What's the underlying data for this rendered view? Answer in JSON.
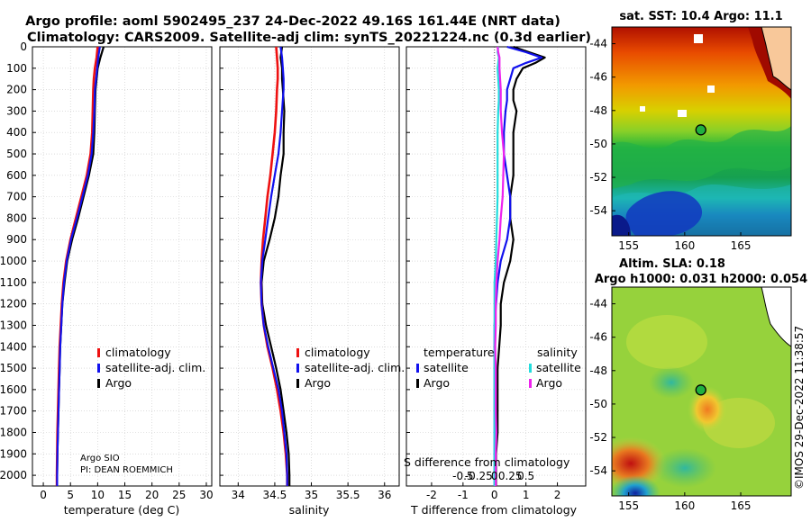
{
  "header": {
    "title_line1": "Argo profile: aoml 5902495_237 24-Dec-2022 49.16S 161.44E (NRT data)",
    "title_line2": "Climatology: CARS2009. Satellite-adj clim: synTS_20221224.nc (0.3d earlier)"
  },
  "colors": {
    "climatology": "#ee1111",
    "satellite_adj": "#1111ee",
    "argo": "#000000",
    "sal_satellite": "#22dddd",
    "sal_argo": "#ee22ee",
    "grid": "#c8c8c8"
  },
  "depth_ticks": [
    "0",
    "100",
    "200",
    "300",
    "400",
    "500",
    "600",
    "700",
    "800",
    "900",
    "1000",
    "1100",
    "1200",
    "1300",
    "1400",
    "1500",
    "1600",
    "1700",
    "1800",
    "1900",
    "2000"
  ],
  "info": {
    "float_owner": "Argo SIO",
    "pi": "PI: DEAN ROEMMICH"
  },
  "watermark": "©IMOS 29-Dec-2022 11:38:57",
  "chart_data": [
    {
      "type": "line",
      "name": "temperature",
      "xlabel": "temperature (deg C)",
      "ylabel": "depth (dbar)",
      "xlim": [
        -2,
        31
      ],
      "ylim": [
        0,
        2050
      ],
      "xticks": [
        "0",
        "5",
        "10",
        "15",
        "20",
        "25",
        "30"
      ],
      "legend": [
        "climatology",
        "satellite-adj. clim.",
        "Argo"
      ],
      "depth": [
        0,
        50,
        100,
        150,
        200,
        300,
        400,
        500,
        600,
        700,
        800,
        900,
        1000,
        1100,
        1200,
        1300,
        1400,
        1500,
        1600,
        1700,
        1800,
        1900,
        2000,
        2050
      ],
      "series": [
        {
          "name": "climatology",
          "values": [
            10.0,
            9.8,
            9.5,
            9.3,
            9.2,
            9.1,
            9.0,
            8.7,
            8.0,
            7.0,
            6.0,
            5.0,
            4.2,
            3.7,
            3.4,
            3.2,
            3.0,
            2.9,
            2.8,
            2.7,
            2.6,
            2.55,
            2.5,
            2.5
          ]
        },
        {
          "name": "satellite-adj. clim.",
          "values": [
            10.4,
            10.1,
            9.9,
            9.7,
            9.5,
            9.4,
            9.2,
            8.9,
            8.2,
            7.2,
            6.2,
            5.1,
            4.3,
            3.8,
            3.5,
            3.3,
            3.1,
            3.0,
            2.9,
            2.8,
            2.7,
            2.6,
            2.55,
            2.55
          ]
        },
        {
          "name": "Argo",
          "values": [
            11.1,
            10.5,
            10.0,
            9.8,
            9.6,
            9.5,
            9.4,
            9.2,
            8.4,
            7.4,
            6.4,
            5.3,
            4.4,
            3.9,
            3.5,
            3.3,
            3.1,
            3.0,
            2.9,
            2.8,
            2.7,
            2.6,
            2.55,
            2.55
          ]
        }
      ]
    },
    {
      "type": "line",
      "name": "salinity",
      "xlabel": "salinity",
      "ylabel": "depth (dbar)",
      "xlim": [
        33.75,
        36.2
      ],
      "ylim": [
        0,
        2050
      ],
      "xticks": [
        "34",
        "34.5",
        "35",
        "35.5",
        "36"
      ],
      "legend": [
        "climatology",
        "satellite-adj. clim.",
        "Argo"
      ],
      "depth": [
        0,
        50,
        100,
        150,
        200,
        300,
        400,
        500,
        600,
        700,
        800,
        900,
        1000,
        1100,
        1200,
        1300,
        1400,
        1500,
        1600,
        1700,
        1800,
        1900,
        2000,
        2050
      ],
      "series": [
        {
          "name": "climatology",
          "values": [
            34.52,
            34.53,
            34.54,
            34.54,
            34.53,
            34.52,
            34.5,
            34.47,
            34.44,
            34.4,
            34.37,
            34.34,
            34.32,
            34.31,
            34.32,
            34.35,
            34.4,
            34.47,
            34.53,
            34.58,
            34.62,
            34.65,
            34.67,
            34.67
          ]
        },
        {
          "name": "satellite-adj. clim.",
          "values": [
            34.58,
            34.6,
            34.61,
            34.62,
            34.62,
            34.6,
            34.58,
            34.55,
            34.5,
            34.45,
            34.41,
            34.37,
            34.33,
            34.31,
            34.32,
            34.35,
            34.41,
            34.48,
            34.55,
            34.6,
            34.63,
            34.66,
            34.67,
            34.67
          ]
        },
        {
          "name": "Argo",
          "values": [
            34.6,
            34.58,
            34.6,
            34.6,
            34.61,
            34.63,
            34.62,
            34.62,
            34.58,
            34.55,
            34.5,
            34.43,
            34.35,
            34.32,
            34.33,
            34.38,
            34.45,
            34.52,
            34.58,
            34.62,
            34.66,
            34.69,
            34.7,
            34.7
          ]
        }
      ]
    },
    {
      "type": "line",
      "name": "difference",
      "xlabel": "T difference from climatology",
      "xlabel2": "S difference from climatology",
      "xlim": [
        -2.8,
        2.9
      ],
      "ylim": [
        0,
        2050
      ],
      "xticks": [
        "-2",
        "-1",
        "0",
        "1",
        "2"
      ],
      "sticks": [
        "-0.5",
        "-0.25",
        "0",
        "0.25",
        "0.5"
      ],
      "legend_titles": [
        "temperature",
        "salinity"
      ],
      "legend": [
        "satellite",
        "Argo",
        "satellite",
        "Argo"
      ],
      "depth": [
        0,
        25,
        50,
        75,
        100,
        150,
        200,
        250,
        300,
        400,
        500,
        600,
        700,
        800,
        900,
        1000,
        1100,
        1200,
        1300,
        1400,
        1500,
        1600,
        1700,
        1800,
        1900,
        2000,
        2050
      ],
      "series": [
        {
          "name": "T satellite",
          "values": [
            0.4,
            1.0,
            1.5,
            1.0,
            0.6,
            0.5,
            0.4,
            0.4,
            0.35,
            0.3,
            0.3,
            0.4,
            0.5,
            0.5,
            0.4,
            0.2,
            0.1,
            0.05,
            0.0,
            0.0,
            0.0,
            0.0,
            0.0,
            0.0,
            0.0,
            0.0,
            0.0
          ]
        },
        {
          "name": "T Argo",
          "values": [
            0.6,
            1.1,
            1.6,
            1.3,
            0.9,
            0.7,
            0.6,
            0.6,
            0.7,
            0.6,
            0.6,
            0.6,
            0.5,
            0.5,
            0.6,
            0.5,
            0.3,
            0.2,
            0.2,
            0.15,
            0.1,
            0.1,
            0.1,
            0.1,
            0.05,
            0.05,
            0.05
          ]
        },
        {
          "name": "S satellite",
          "values": [
            0.06,
            0.05,
            0.07,
            0.06,
            0.05,
            0.06,
            0.07,
            0.07,
            0.06,
            0.05,
            0.05,
            0.05,
            0.05,
            0.04,
            0.03,
            0.02,
            0.0,
            0.0,
            0.0,
            0.0,
            0.0,
            0.0,
            0.0,
            0.0,
            0.0,
            0.0,
            0.0
          ]
        },
        {
          "name": "S Argo",
          "values": [
            0.05,
            0.06,
            0.08,
            0.08,
            0.08,
            0.09,
            0.1,
            0.1,
            0.1,
            0.12,
            0.15,
            0.14,
            0.13,
            0.1,
            0.08,
            0.05,
            0.03,
            0.02,
            0.02,
            0.01,
            0.02,
            0.02,
            0.02,
            0.03,
            0.02,
            0.02,
            0.02
          ]
        }
      ]
    },
    {
      "type": "heatmap",
      "name": "sst-map",
      "title": "sat. SST: 10.4 Argo: 11.1",
      "lon_range": [
        153.5,
        169.5
      ],
      "lat_range": [
        -55.5,
        -43
      ],
      "xticks": [
        "155",
        "160",
        "165"
      ],
      "yticks": [
        "-44",
        "-46",
        "-48",
        "-50",
        "-52",
        "-54"
      ],
      "float_position": {
        "lon": 161.44,
        "lat": -49.16
      }
    },
    {
      "type": "heatmap",
      "name": "sla-map",
      "title_line1": "Altim. SLA: 0.18",
      "title_line2": "Argo h1000: 0.031 h2000: 0.054",
      "lon_range": [
        153.5,
        169.5
      ],
      "lat_range": [
        -55.5,
        -43
      ],
      "xticks": [
        "155",
        "160",
        "165"
      ],
      "yticks": [
        "-44",
        "-46",
        "-48",
        "-50",
        "-52",
        "-54"
      ],
      "float_position": {
        "lon": 161.44,
        "lat": -49.16
      }
    }
  ]
}
